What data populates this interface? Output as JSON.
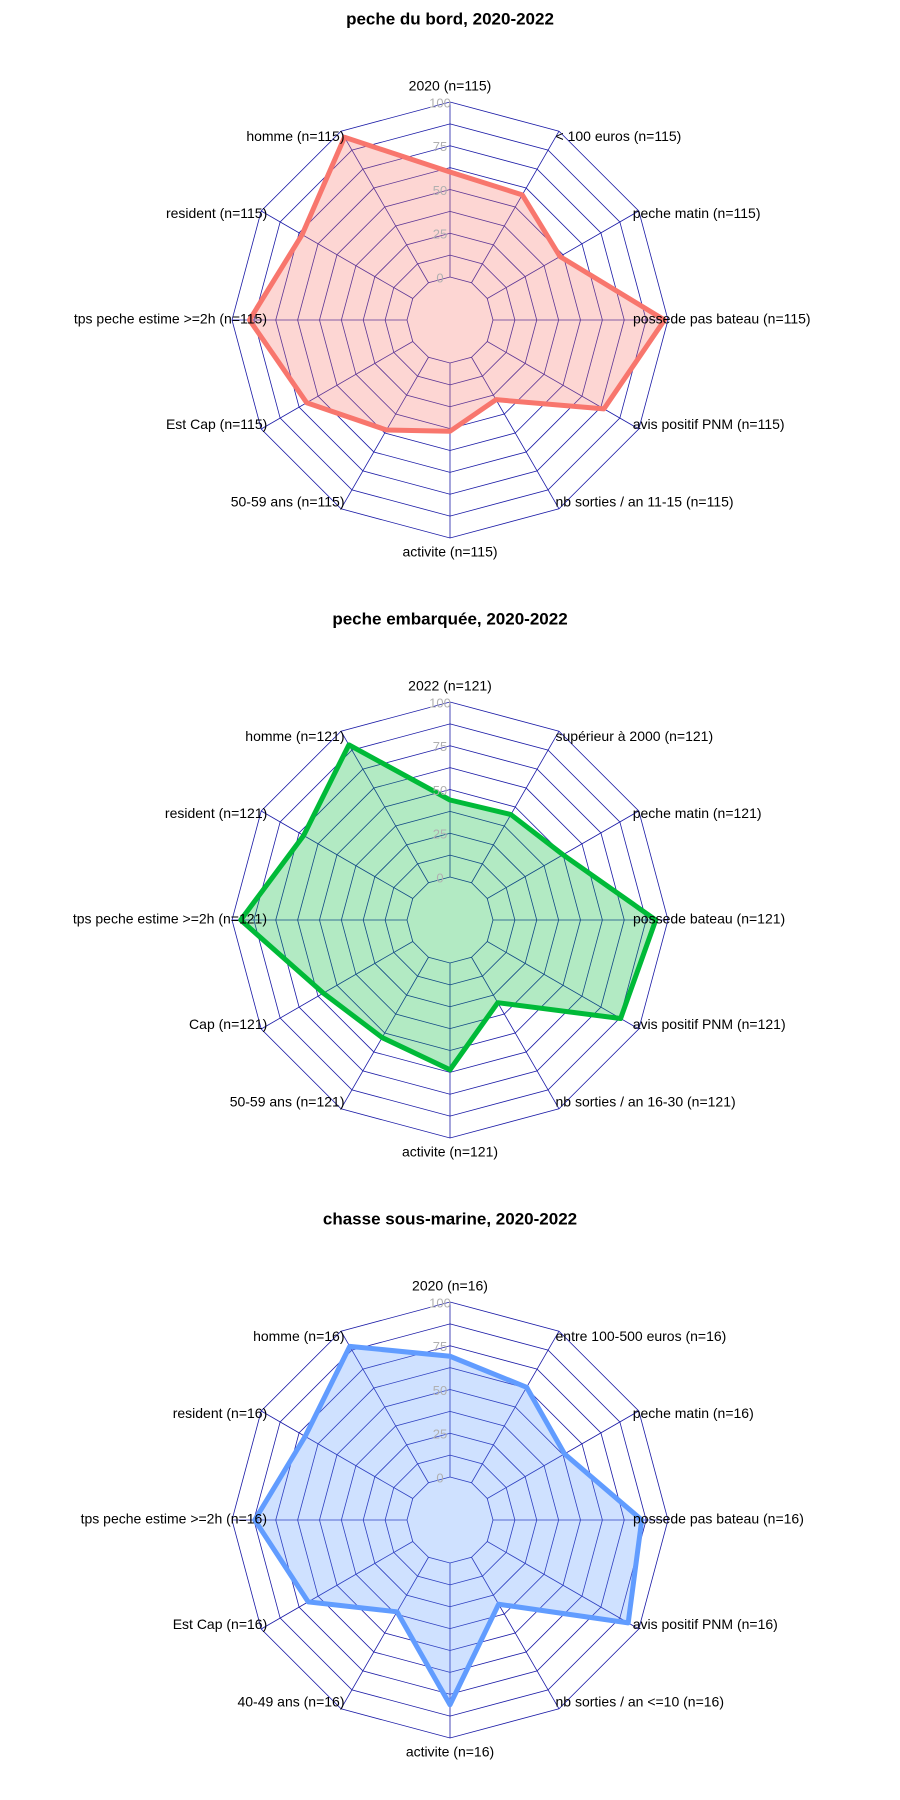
{
  "chart_data": [
    {
      "type": "radar",
      "title": "peche du bord, 2020-2022",
      "rlim": [
        0,
        100
      ],
      "rticks": [
        "0",
        "25",
        "50",
        "75",
        "100"
      ],
      "colors": {
        "line": "#f8766d",
        "fill": "#f8766d"
      },
      "axes": [
        "2020 (n=115)",
        "< 100 euros (n=115)",
        "peche matin (n=115)",
        "possede pas bateau (n=115)",
        "avis positif PNM (n=115)",
        "nb sorties / an 11-15 (n=115)",
        "activite (n=115)",
        "50-59 ans (n=115)",
        "Est Cap (n=115)",
        "tps peche estime >=2h (n=115)",
        "resident (n=115)",
        "homme (n=115)"
      ],
      "values": [
        60,
        58,
        48,
        98,
        77,
        28,
        39,
        48,
        70,
        90,
        73,
        96
      ]
    },
    {
      "type": "radar",
      "title": "peche embarquée, 2020-2022",
      "rlim": [
        0,
        100
      ],
      "rticks": [
        "0",
        "25",
        "50",
        "75",
        "100"
      ],
      "colors": {
        "line": "#00ba38",
        "fill": "#00ba38"
      },
      "axes": [
        "2022 (n=121)",
        "supérieur à 2000 (n=121)",
        "peche matin (n=121)",
        "possede bateau (n=121)",
        "avis positif PNM (n=121)",
        "nb sorties / an 16-30 (n=121)",
        "activite (n=121)",
        "50-59 ans (n=121)",
        "Cap (n=121)",
        "tps peche estime >=2h (n=121)",
        "resident (n=121)",
        "homme (n=121)"
      ],
      "values": [
        44,
        45,
        50,
        93,
        88,
        30,
        61,
        53,
        59,
        95,
        72,
        91
      ]
    },
    {
      "type": "radar",
      "title": "chasse sous-marine, 2020-2022",
      "rlim": [
        0,
        100
      ],
      "rticks": [
        "0",
        "25",
        "50",
        "75",
        "100"
      ],
      "colors": {
        "line": "#619cff",
        "fill": "#619cff"
      },
      "axes": [
        "2020 (n=16)",
        "entre 100-500 euros (n=16)",
        "peche matin (n=16)",
        "possede pas bateau (n=16)",
        "avis positif PNM (n=16)",
        "nb sorties / an <=10 (n=16)",
        "activite (n=16)",
        "40-49 ans (n=16)",
        "Est Cap (n=16)",
        "tps peche estime >=2h (n=16)",
        "resident (n=16)",
        "homme (n=16)"
      ],
      "values": [
        69,
        63,
        51,
        85,
        93,
        31,
        81,
        36,
        69,
        87,
        71,
        90
      ]
    }
  ]
}
